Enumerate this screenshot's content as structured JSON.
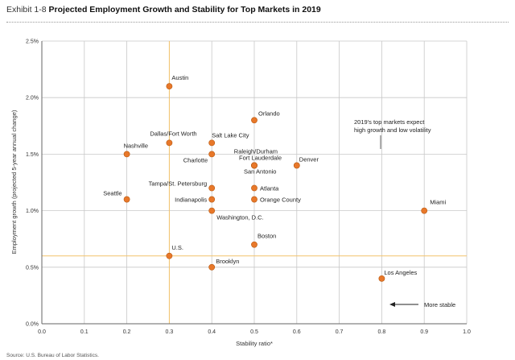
{
  "header": {
    "exhibit": "Exhibit 1-8",
    "title": "Projected Employment Growth and Stability for Top Markets in 2019"
  },
  "source": "Source: U.S. Bureau of Labor Statistics.",
  "colors": {
    "point_fill": "#e8782a",
    "point_stroke": "#b85a12",
    "grid": "#c8c8c8",
    "reference": "#f4c36b",
    "axis": "#666666"
  },
  "chart_data": {
    "type": "scatter",
    "title": "Projected Employment Growth and Stability for Top Markets in 2019",
    "xlabel": "Stability ratio*",
    "ylabel": "Employment growth (projected 5-year annual change)",
    "xlim": [
      0,
      1.0
    ],
    "ylim": [
      0,
      2.5
    ],
    "x_ticks": [
      0.0,
      0.1,
      0.2,
      0.3,
      0.4,
      0.5,
      0.6,
      0.7,
      0.8,
      0.9,
      1.0
    ],
    "x_tick_labels": [
      "0.0",
      "0.1",
      "0.2",
      "0.3",
      "0.4",
      "0.5",
      "0.6",
      "0.7",
      "0.8",
      "0.9",
      "1.0"
    ],
    "y_ticks": [
      0.0,
      0.5,
      1.0,
      1.5,
      2.0,
      2.5
    ],
    "y_tick_labels": [
      "0.0%",
      "0.5%",
      "1.0%",
      "1.5%",
      "2.0%",
      "2.5%"
    ],
    "grid": true,
    "reference_lines": {
      "x": 0.3,
      "y": 0.6
    },
    "points": [
      {
        "label": "Austin",
        "x": 0.3,
        "y": 2.1,
        "anchor": "start",
        "dx": 3,
        "dy": -8
      },
      {
        "label": "Orlando",
        "x": 0.5,
        "y": 1.8,
        "anchor": "start",
        "dx": 5,
        "dy": -6
      },
      {
        "label": "Dallas/Fort Worth",
        "x": 0.3,
        "y": 1.6,
        "anchor": "start",
        "dx": -24,
        "dy": -9
      },
      {
        "label": "Salt Lake City",
        "x": 0.4,
        "y": 1.6,
        "anchor": "start",
        "dx": 0,
        "dy": -7
      },
      {
        "label": "Nashville",
        "x": 0.2,
        "y": 1.5,
        "anchor": "start",
        "dx": -4,
        "dy": -8
      },
      {
        "label": "Charlotte",
        "x": 0.4,
        "y": 1.5,
        "anchor": "end",
        "dx": -5,
        "dy": 10
      },
      {
        "label": "Raleigh/Durham",
        "x": 0.5,
        "y": 1.4,
        "anchor": "end",
        "dx": 29,
        "dy": -15
      },
      {
        "label": "Fort Lauderdale",
        "x": 0.5,
        "y": 1.4,
        "anchor": "end",
        "dx": 34,
        "dy": -7
      },
      {
        "label": "San Antonio",
        "x": 0.5,
        "y": 1.4,
        "anchor": "start",
        "dx": -13,
        "dy": 10
      },
      {
        "label": "Denver",
        "x": 0.6,
        "y": 1.4,
        "anchor": "start",
        "dx": 3,
        "dy": -5
      },
      {
        "label": "Tampa/St. Petersburg",
        "x": 0.4,
        "y": 1.2,
        "anchor": "end",
        "dx": -6,
        "dy": -3
      },
      {
        "label": "Atlanta",
        "x": 0.5,
        "y": 1.2,
        "anchor": "start",
        "dx": 7,
        "dy": 3
      },
      {
        "label": "Seattle",
        "x": 0.2,
        "y": 1.1,
        "anchor": "end",
        "dx": -6,
        "dy": -5
      },
      {
        "label": "Indianapolis",
        "x": 0.4,
        "y": 1.1,
        "anchor": "end",
        "dx": -6,
        "dy": 3
      },
      {
        "label": "Orange County",
        "x": 0.5,
        "y": 1.1,
        "anchor": "start",
        "dx": 7,
        "dy": 3
      },
      {
        "label": "Miami",
        "x": 0.9,
        "y": 1.0,
        "anchor": "start",
        "dx": 7,
        "dy": -8
      },
      {
        "label": "Washington, D.C.",
        "x": 0.4,
        "y": 1.0,
        "anchor": "start",
        "dx": 6,
        "dy": 11
      },
      {
        "label": "Boston",
        "x": 0.5,
        "y": 0.7,
        "anchor": "start",
        "dx": 4,
        "dy": -8
      },
      {
        "label": "U.S.",
        "x": 0.3,
        "y": 0.6,
        "anchor": "start",
        "dx": 3,
        "dy": -8
      },
      {
        "label": "Brooklyn",
        "x": 0.4,
        "y": 0.5,
        "anchor": "start",
        "dx": 5,
        "dy": -5
      },
      {
        "label": "Los Angeles",
        "x": 0.8,
        "y": 0.4,
        "anchor": "start",
        "dx": 3,
        "dy": -5
      }
    ],
    "annotations": {
      "note_line1": "2019's top markets expect",
      "note_line2": "high growth and low volatility",
      "arrow_label": "More stable"
    }
  }
}
